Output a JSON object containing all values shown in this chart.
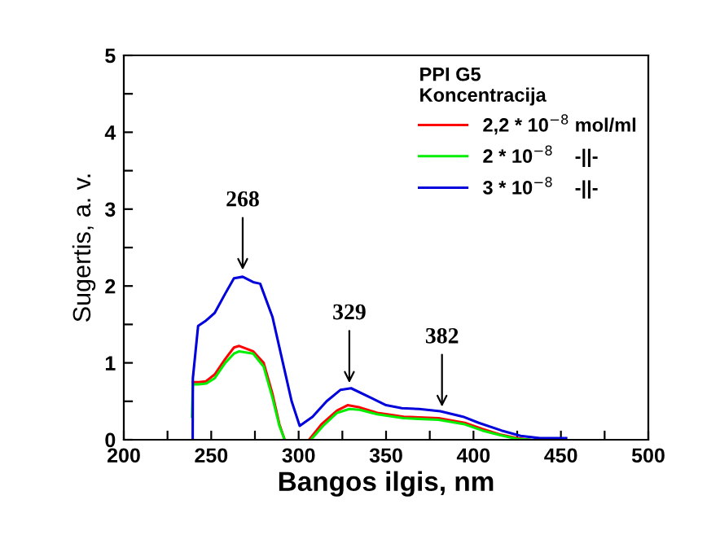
{
  "chart_data": {
    "type": "line",
    "xlabel": "Bangos ilgis, nm",
    "ylabel": "Sugertis, a. v.",
    "legend_title": "PPI G5\nKoncentracija",
    "xlim": [
      200,
      500
    ],
    "ylim": [
      0,
      5
    ],
    "xticks": [
      200,
      {
        "value": 225,
        "label": null
      },
      250,
      {
        "value": 275,
        "label": null
      },
      300,
      {
        "value": 325,
        "label": null
      },
      350,
      {
        "value": 375,
        "label": null
      },
      400,
      {
        "value": 425,
        "label": null
      },
      450,
      {
        "value": 475,
        "label": null
      },
      500
    ],
    "yticks": [
      0,
      {
        "value": 0.5,
        "label": null
      },
      1,
      {
        "value": 1.5,
        "label": null
      },
      2,
      {
        "value": 2.5,
        "label": null
      },
      3,
      {
        "value": 3.5,
        "label": null
      },
      4,
      {
        "value": 4.5,
        "label": null
      },
      5
    ],
    "grid": false,
    "legend": "top right",
    "marker": "none",
    "line_style": "solid",
    "series": [
      {
        "name": "2,2 * 10$^{−8}$ mol/ml",
        "color": "#ff0000",
        "x": [
          239.5,
          243,
          247,
          252,
          258,
          263,
          266,
          274,
          280,
          285,
          289,
          292,
          null,
          306,
          313,
          322,
          328,
          335,
          345,
          360,
          380,
          395,
          405,
          415,
          425,
          432
        ],
        "values": [
          0.75,
          0.75,
          0.76,
          0.85,
          1.05,
          1.2,
          1.22,
          1.15,
          1.0,
          0.6,
          0.2,
          0,
          null,
          0,
          0.2,
          0.38,
          0.45,
          0.42,
          0.35,
          0.3,
          0.28,
          0.22,
          0.14,
          0.07,
          0.02,
          0
        ]
      },
      {
        "name": "2 * 10$^{−8}$    -||-",
        "color": "#00ee00",
        "x": [
          239,
          239.5,
          243,
          247,
          252,
          258,
          263,
          266,
          274,
          280,
          285,
          289,
          292,
          null,
          307,
          314,
          322,
          329,
          335,
          345,
          360,
          380,
          395,
          405,
          415,
          425,
          432
        ],
        "values": [
          0.3,
          0.72,
          0.72,
          0.73,
          0.8,
          1.0,
          1.12,
          1.15,
          1.12,
          0.95,
          0.55,
          0.18,
          0,
          null,
          0,
          0.18,
          0.35,
          0.4,
          0.39,
          0.33,
          0.28,
          0.26,
          0.2,
          0.12,
          0.06,
          0.01,
          0
        ]
      },
      {
        "name": "3 * 10$^{−8}$    -||-",
        "color": "#0000dd",
        "x": [
          239.4,
          239.5,
          242.5,
          247,
          252,
          258,
          263,
          268,
          274,
          278,
          285,
          291,
          296,
          300.6,
          308,
          316,
          324,
          330,
          341,
          350,
          359,
          369,
          381,
          394,
          403,
          416,
          427,
          438,
          453
        ],
        "values": [
          0,
          0.8,
          1.48,
          1.55,
          1.65,
          1.9,
          2.1,
          2.12,
          2.05,
          2.03,
          1.6,
          1.0,
          0.5,
          0.18,
          0.3,
          0.5,
          0.65,
          0.67,
          0.55,
          0.45,
          0.41,
          0.4,
          0.37,
          0.3,
          0.22,
          0.12,
          0.05,
          0.02,
          0.02
        ]
      }
    ],
    "annotations": [
      {
        "text": "268",
        "x": 268,
        "y": 2.15
      },
      {
        "text": "329",
        "x": 329,
        "y": 0.68
      },
      {
        "text": "382",
        "x": 382,
        "y": 0.37
      }
    ]
  }
}
